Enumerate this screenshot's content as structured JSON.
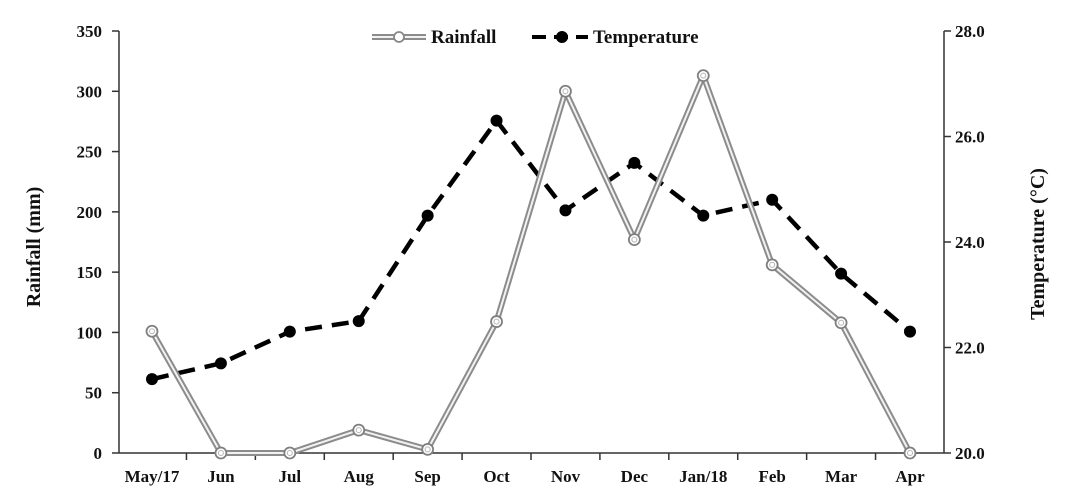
{
  "chart_data": {
    "type": "line",
    "title": "",
    "categories": [
      "May/17",
      "Jun",
      "Jul",
      "Aug",
      "Sep",
      "Oct",
      "Nov",
      "Dec",
      "Jan/18",
      "Feb",
      "Mar",
      "Apr"
    ],
    "series": [
      {
        "name": "Rainfall",
        "axis": "left",
        "style": "double-line-open-circle",
        "color": "#9a9a9a",
        "values": [
          101,
          0,
          0,
          19,
          3,
          109,
          300,
          177,
          313,
          156,
          108,
          0
        ]
      },
      {
        "name": "Temperature",
        "axis": "right",
        "style": "dashed-filled-circle",
        "color": "#000000",
        "values": [
          21.4,
          21.7,
          22.3,
          22.5,
          24.5,
          26.3,
          24.6,
          25.5,
          24.5,
          24.8,
          23.4,
          22.3
        ]
      }
    ],
    "ylabel": "Rainfall (mm)",
    "y2label": "Temperature (°C)",
    "ylim": [
      0,
      350
    ],
    "y2lim": [
      20,
      28
    ],
    "yticks": [
      0,
      50,
      100,
      150,
      200,
      250,
      300,
      350
    ],
    "y2ticks": [
      "20.0",
      "22.0",
      "24.0",
      "26.0",
      "28.0"
    ],
    "y2tick_values": [
      20,
      22,
      24,
      26,
      28
    ],
    "legend_position": "top-center",
    "grid": false
  }
}
